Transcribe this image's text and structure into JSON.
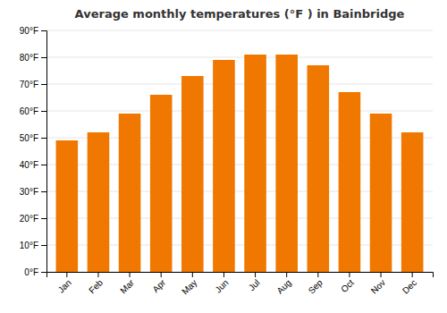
{
  "chart_data": {
    "type": "bar",
    "title": "Average monthly temperatures (°F ) in Bainbridge",
    "categories": [
      "Jan",
      "Feb",
      "Mar",
      "Apr",
      "May",
      "Jun",
      "Jul",
      "Aug",
      "Sep",
      "Oct",
      "Nov",
      "Dec"
    ],
    "values": [
      49,
      52,
      59,
      66,
      73,
      79,
      81,
      81,
      77,
      67,
      59,
      52
    ],
    "color": "#F07800",
    "ylim": [
      0,
      90
    ],
    "yticks": [
      {
        "value": 0,
        "label": "0°F"
      },
      {
        "value": 10,
        "label": "10°F"
      },
      {
        "value": 20,
        "label": "20°F"
      },
      {
        "value": 30,
        "label": "30°F"
      },
      {
        "value": 40,
        "label": "40°F"
      },
      {
        "value": 50,
        "label": "50°F"
      },
      {
        "value": 60,
        "label": "60°F"
      },
      {
        "value": 70,
        "label": "70°F"
      },
      {
        "value": 80,
        "label": "80°F"
      },
      {
        "value": 90,
        "label": "90°F"
      }
    ],
    "grid": true
  }
}
